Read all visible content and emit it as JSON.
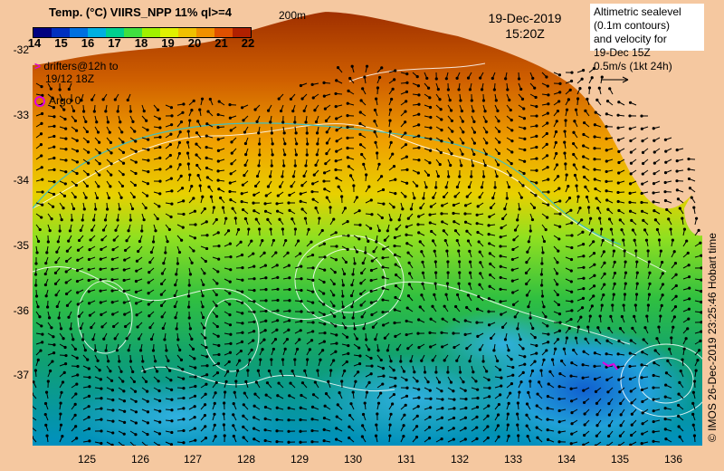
{
  "header": {
    "title": "Temp. (°C) VIIRS_NPP 11% ql>=4",
    "depth_label": "200m",
    "date": "19-Dec-2019",
    "time": "15:20Z"
  },
  "colorbar": {
    "ticks": [
      "14",
      "15",
      "16",
      "17",
      "18",
      "19",
      "20",
      "21",
      "22"
    ],
    "colors": [
      "#000080",
      "#0030c0",
      "#0070e0",
      "#00b0e0",
      "#00d090",
      "#40e040",
      "#a0f000",
      "#e0f000",
      "#f0c000",
      "#f09000",
      "#e05000",
      "#b02000"
    ]
  },
  "altimetry_legend": {
    "line1": "Altimetric sealevel",
    "line2": "(0.1m contours)",
    "line3": "and velocity for",
    "line4": "19-Dec 15Z",
    "line5": "0.5m/s (1kt 24h)"
  },
  "drifters": {
    "marker": ">",
    "line1": "drifters@12h to",
    "line2": "19/12 18Z"
  },
  "argo": {
    "label": "Argo 0"
  },
  "axes": {
    "y_ticks": [
      "-32",
      "-33",
      "-34",
      "-35",
      "-36",
      "-37"
    ],
    "x_ticks": [
      "125",
      "126",
      "127",
      "128",
      "129",
      "130",
      "131",
      "132",
      "133",
      "134",
      "135",
      "136"
    ]
  },
  "credit": "© IMOS 26-Dec-2019 23:25:46 Hobart time",
  "colors": {
    "land": "#f5c8a0",
    "arrows": "#000000",
    "contours": "#ffffff",
    "markers": "#e000e0"
  }
}
